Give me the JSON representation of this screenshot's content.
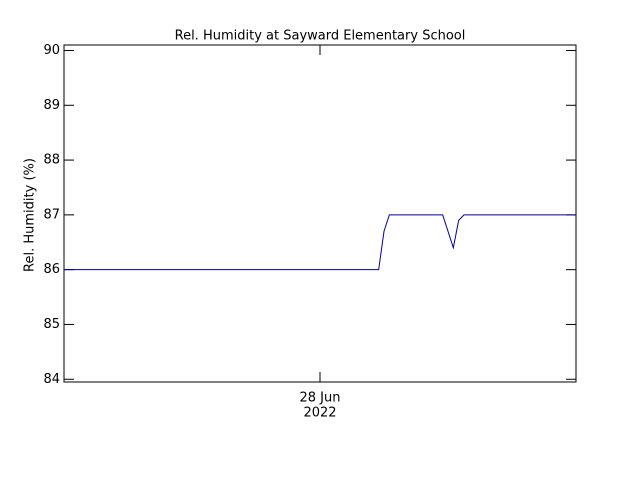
{
  "chart_data": {
    "type": "line",
    "title": "Rel. Humidity at Sayward Elementary School",
    "y_label": "Rel. Humidity (%)",
    "categories": [
      null,
      null,
      null,
      null,
      null,
      null,
      null,
      null,
      null,
      null,
      null,
      null,
      null,
      null,
      null,
      null,
      null,
      null,
      null,
      null,
      null,
      null,
      null,
      null,
      null,
      null,
      null,
      null,
      null,
      null,
      null,
      null,
      null,
      null,
      null,
      null,
      null,
      null,
      null,
      null,
      null,
      null,
      null,
      null,
      null,
      null,
      null,
      null,
      "28 Jun",
      null,
      null,
      null,
      null,
      null,
      null,
      null,
      null,
      null,
      null,
      null,
      null,
      null,
      null,
      null,
      null,
      null,
      null,
      null,
      null,
      null,
      null,
      null,
      null,
      null,
      null,
      null,
      null,
      null,
      null,
      null,
      null,
      null,
      null,
      null,
      null,
      null,
      null,
      null,
      null,
      null,
      null,
      null,
      null,
      null,
      null,
      null,
      null
    ],
    "x_sublabel": "2022",
    "series": [
      {
        "name": "Rel. Humidity",
        "color": "#0000a0",
        "values": [
          86,
          86,
          86,
          86,
          86,
          86,
          86,
          86,
          86,
          86,
          86,
          86,
          86,
          86,
          86,
          86,
          86,
          86,
          86,
          86,
          86,
          86,
          86,
          86,
          86,
          86,
          86,
          86,
          86,
          86,
          86,
          86,
          86,
          86,
          86,
          86,
          86,
          86,
          86,
          86,
          86,
          86,
          86,
          86,
          86,
          86,
          86,
          86,
          86,
          86,
          86,
          86,
          86,
          86,
          86,
          86,
          86,
          86,
          86,
          86,
          86.7,
          87,
          87,
          87,
          87,
          87,
          87,
          87,
          87,
          87,
          87,
          87,
          86.7,
          86.4,
          86.9,
          87,
          87,
          87,
          87,
          87,
          87,
          87,
          87,
          87,
          87,
          87,
          87,
          87,
          87,
          87,
          87,
          87,
          87,
          87,
          87,
          87,
          87
        ]
      }
    ],
    "ylim": [
      83.95,
      90.1
    ],
    "yticks": [
      84,
      85,
      86,
      87,
      88,
      89,
      90
    ]
  }
}
